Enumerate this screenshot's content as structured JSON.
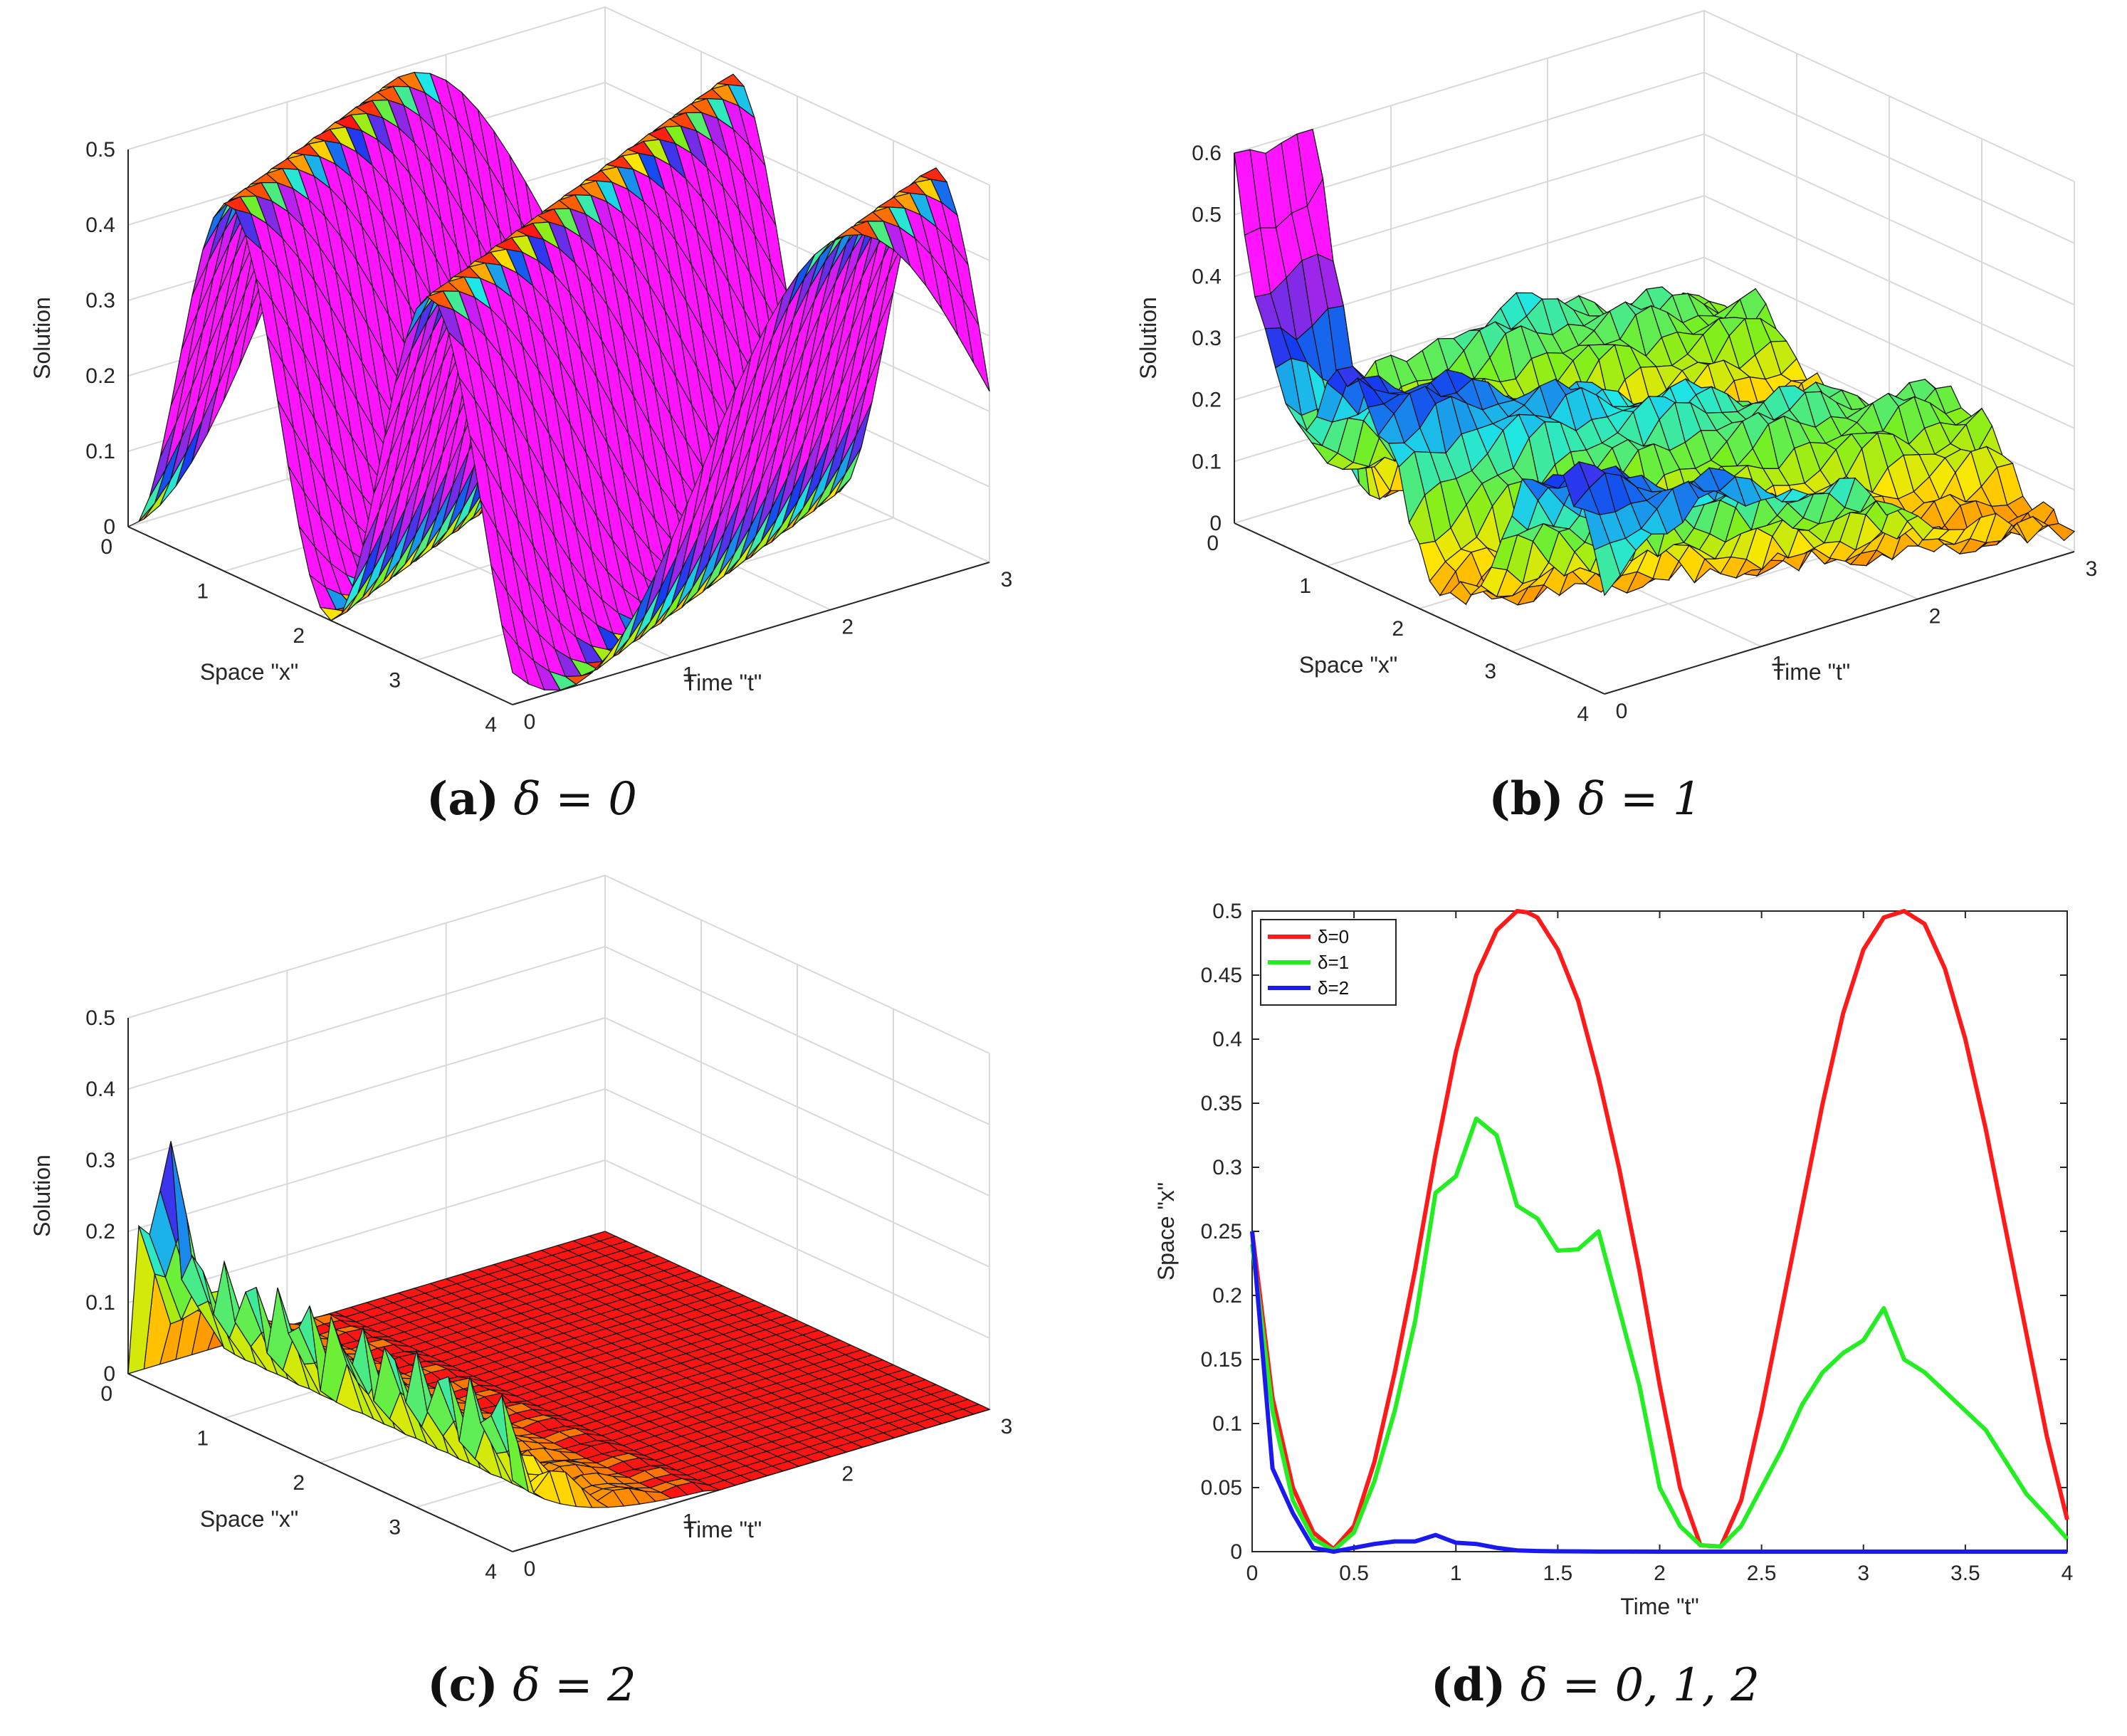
{
  "chart_data": [
    {
      "type": "surface",
      "panel": "a",
      "caption_label": "(a)",
      "caption_expr": "δ = 0",
      "zlabel": "Solution",
      "xlabel": "Space \"x\"",
      "ylabel": "Time \"t\"",
      "ztick_labels": [
        "0",
        "0.1",
        "0.2",
        "0.3",
        "0.4",
        "0.5"
      ],
      "xtick_labels": [
        "0",
        "1",
        "2",
        "3",
        "4"
      ],
      "ttick_labels": [
        "0",
        "1",
        "2",
        "3"
      ],
      "zlim": [
        0,
        0.5
      ],
      "xlim": [
        0,
        4
      ],
      "tlim": [
        0,
        3
      ]
    },
    {
      "type": "surface",
      "panel": "b",
      "caption_label": "(b)",
      "caption_expr": "δ = 1",
      "zlabel": "Solution",
      "xlabel": "Space \"x\"",
      "ylabel": "Time \"t\"",
      "ztick_labels": [
        "0",
        "0.1",
        "0.2",
        "0.3",
        "0.4",
        "0.5",
        "0.6"
      ],
      "xtick_labels": [
        "0",
        "1",
        "2",
        "3",
        "4"
      ],
      "ttick_labels": [
        "0",
        "1",
        "2",
        "3"
      ],
      "zlim": [
        0,
        0.6
      ],
      "xlim": [
        0,
        4
      ],
      "tlim": [
        0,
        3
      ]
    },
    {
      "type": "surface",
      "panel": "c",
      "caption_label": "(c)",
      "caption_expr": "δ = 2",
      "zlabel": "Solution",
      "xlabel": "Space \"x\"",
      "ylabel": "Time \"t\"",
      "ztick_labels": [
        "0",
        "0.1",
        "0.2",
        "0.3",
        "0.4",
        "0.5"
      ],
      "xtick_labels": [
        "0",
        "1",
        "2",
        "3",
        "4"
      ],
      "ttick_labels": [
        "0",
        "1",
        "2",
        "3"
      ],
      "zlim": [
        0,
        0.5
      ],
      "xlim": [
        0,
        4
      ],
      "tlim": [
        0,
        3
      ]
    },
    {
      "type": "line",
      "panel": "d",
      "caption_label": "(d)",
      "caption_expr": "δ = 0, 1, 2",
      "xlabel": "Time \"t\"",
      "ylabel": "Space \"x\"",
      "xlim": [
        0,
        4
      ],
      "ylim": [
        0,
        0.5
      ],
      "xtick_labels": [
        "0",
        "0.5",
        "1",
        "1.5",
        "2",
        "2.5",
        "3",
        "3.5",
        "4"
      ],
      "ytick_labels": [
        "0",
        "0.05",
        "0.1",
        "0.15",
        "0.2",
        "0.25",
        "0.3",
        "0.35",
        "0.4",
        "0.45",
        "0.5"
      ],
      "legend_position": "top-left",
      "series": [
        {
          "name": "δ=0",
          "color": "#ff1a1a",
          "x": [
            0,
            0.1,
            0.2,
            0.3,
            0.4,
            0.5,
            0.6,
            0.7,
            0.8,
            0.9,
            1.0,
            1.1,
            1.2,
            1.3,
            1.35,
            1.4,
            1.5,
            1.6,
            1.7,
            1.8,
            1.9,
            2.0,
            2.1,
            2.2,
            2.3,
            2.4,
            2.5,
            2.6,
            2.7,
            2.8,
            2.9,
            3.0,
            3.1,
            3.2,
            3.3,
            3.4,
            3.5,
            3.6,
            3.7,
            3.8,
            3.9,
            4.0
          ],
          "y": [
            0.25,
            0.12,
            0.05,
            0.015,
            0.002,
            0.02,
            0.07,
            0.14,
            0.22,
            0.31,
            0.39,
            0.45,
            0.485,
            0.5,
            0.499,
            0.495,
            0.47,
            0.43,
            0.37,
            0.3,
            0.22,
            0.13,
            0.05,
            0.005,
            0.004,
            0.04,
            0.11,
            0.19,
            0.27,
            0.35,
            0.42,
            0.47,
            0.495,
            0.5,
            0.49,
            0.455,
            0.4,
            0.33,
            0.25,
            0.17,
            0.09,
            0.025
          ]
        },
        {
          "name": "δ=1",
          "color": "#22ee22",
          "x": [
            0,
            0.1,
            0.2,
            0.3,
            0.4,
            0.5,
            0.6,
            0.7,
            0.8,
            0.9,
            1.0,
            1.1,
            1.2,
            1.3,
            1.4,
            1.5,
            1.6,
            1.7,
            1.8,
            1.9,
            2.0,
            2.1,
            2.2,
            2.3,
            2.4,
            2.5,
            2.6,
            2.7,
            2.8,
            2.9,
            3.0,
            3.1,
            3.2,
            3.3,
            3.4,
            3.5,
            3.6,
            3.7,
            3.8,
            3.9,
            4.0
          ],
          "y": [
            0.24,
            0.11,
            0.04,
            0.01,
            0.001,
            0.015,
            0.055,
            0.11,
            0.18,
            0.28,
            0.293,
            0.338,
            0.325,
            0.27,
            0.26,
            0.235,
            0.236,
            0.25,
            0.19,
            0.13,
            0.05,
            0.02,
            0.005,
            0.004,
            0.02,
            0.05,
            0.08,
            0.115,
            0.14,
            0.155,
            0.165,
            0.19,
            0.15,
            0.14,
            0.125,
            0.11,
            0.095,
            0.07,
            0.045,
            0.028,
            0.01
          ]
        },
        {
          "name": "δ=2",
          "color": "#1a1aee",
          "x": [
            0,
            0.1,
            0.2,
            0.3,
            0.4,
            0.5,
            0.6,
            0.7,
            0.8,
            0.9,
            1.0,
            1.1,
            1.2,
            1.3,
            1.4,
            1.5,
            1.6,
            1.7,
            1.8,
            2.0,
            2.5,
            3.0,
            3.5,
            4.0
          ],
          "y": [
            0.25,
            0.065,
            0.03,
            0.003,
            0.0,
            0.003,
            0.006,
            0.008,
            0.008,
            0.013,
            0.007,
            0.006,
            0.003,
            0.001,
            0.0005,
            0.0003,
            0.0002,
            0.0001,
            0.0001,
            0.0,
            0.0,
            0.0,
            0.0,
            0.0
          ]
        }
      ]
    }
  ]
}
